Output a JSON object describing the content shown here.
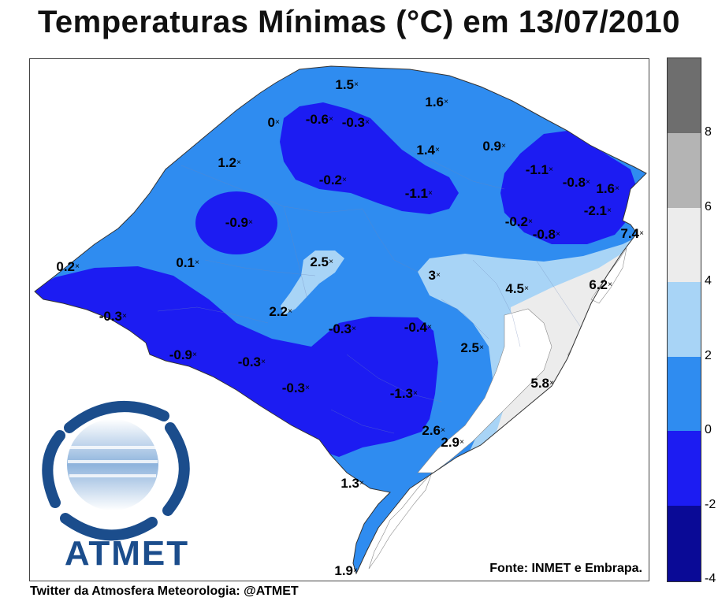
{
  "title": "Temperaturas Mínimas (°C) em 13/07/2010",
  "source": "Fonte: INMET e Embrapa.",
  "footer": "Twitter da Atmosfera Meteorologia: @ATMET",
  "logo_text": "ATMET",
  "legend": {
    "ticks": [
      "8",
      "6",
      "4",
      "2",
      "0",
      "-2",
      "-4"
    ],
    "colors": [
      "#6e6e6e",
      "#b4b4b4",
      "#ececec",
      "#a8d4f6",
      "#2f8cf0",
      "#1c1cf2",
      "#0a0a96"
    ]
  },
  "stations": [
    {
      "value": "1.5"
    },
    {
      "value": "1.6"
    },
    {
      "value": "0"
    },
    {
      "value": "-0.6"
    },
    {
      "value": "-0.3"
    },
    {
      "value": "1.4"
    },
    {
      "value": "0.9"
    },
    {
      "value": "1.2"
    },
    {
      "value": "-0.2"
    },
    {
      "value": "-1.1"
    },
    {
      "value": "-1.1"
    },
    {
      "value": "-0.8"
    },
    {
      "value": "1.6"
    },
    {
      "value": "-2.1"
    },
    {
      "value": "-0.9"
    },
    {
      "value": "-0.2"
    },
    {
      "value": "-0.8"
    },
    {
      "value": "7.4"
    },
    {
      "value": "0.2"
    },
    {
      "value": "0.1"
    },
    {
      "value": "2.5"
    },
    {
      "value": "3"
    },
    {
      "value": "4.5"
    },
    {
      "value": "6.2"
    },
    {
      "value": "-0.3"
    },
    {
      "value": "2.2"
    },
    {
      "value": "-0.3"
    },
    {
      "value": "-0.4"
    },
    {
      "value": "-0.9"
    },
    {
      "value": "-0.3"
    },
    {
      "value": "2.5"
    },
    {
      "value": "-0.3"
    },
    {
      "value": "-1.3"
    },
    {
      "value": "5.8"
    },
    {
      "value": "2.6"
    },
    {
      "value": "2.9"
    },
    {
      "value": "1.3"
    },
    {
      "value": "1.9"
    }
  ]
}
